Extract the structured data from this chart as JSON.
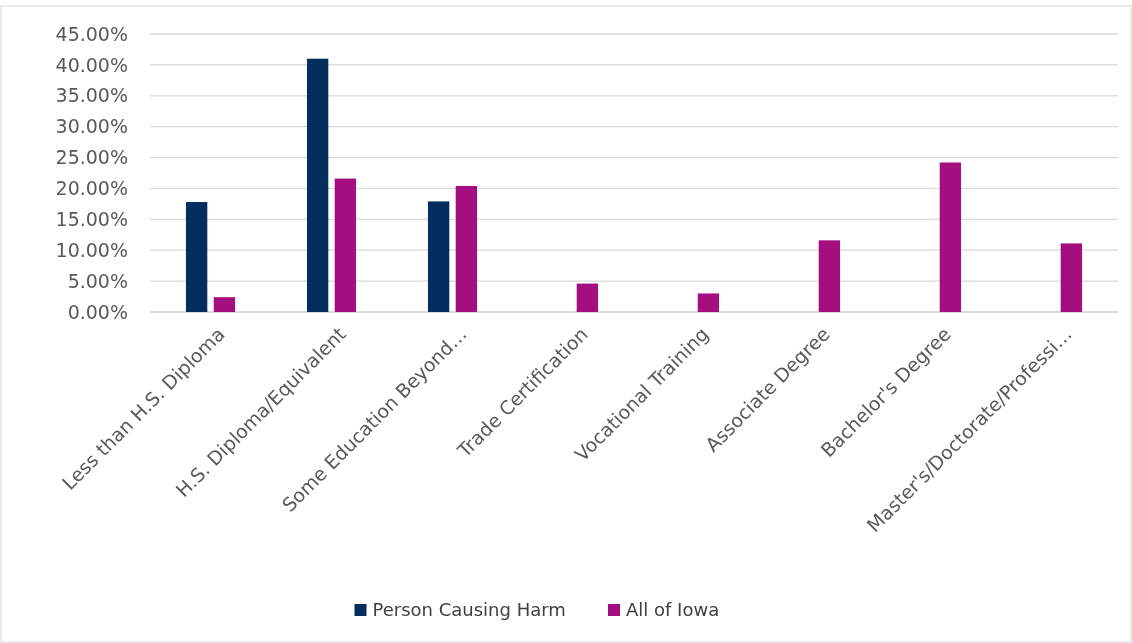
{
  "chart_data": {
    "type": "bar",
    "categories": [
      "Less than H.S. Diploma",
      "H.S. Diploma/Equivalent",
      "Some Education Beyond…",
      "Trade Certification",
      "Vocational Training",
      "Associate Degree",
      "Bachelor's Degree",
      "Master's/Doctorate/Professi…"
    ],
    "series": [
      {
        "name": "Person Causing Harm",
        "color": "#052d5e",
        "values": [
          17.8,
          41.0,
          17.9,
          null,
          null,
          null,
          null,
          null
        ]
      },
      {
        "name": "All of Iowa",
        "color": "#a50e7f",
        "values": [
          2.4,
          21.6,
          20.4,
          4.6,
          3.0,
          11.6,
          24.2,
          11.1
        ]
      }
    ],
    "ylim": [
      0,
      45
    ],
    "yticks": [
      {
        "value": 0,
        "label": "0.00%"
      },
      {
        "value": 5,
        "label": "5.00%"
      },
      {
        "value": 10,
        "label": "10.00%"
      },
      {
        "value": 15,
        "label": "15.00%"
      },
      {
        "value": 20,
        "label": "20.00%"
      },
      {
        "value": 25,
        "label": "25.00%"
      },
      {
        "value": 30,
        "label": "30.00%"
      },
      {
        "value": 35,
        "label": "35.00%"
      },
      {
        "value": 40,
        "label": "40.00%"
      },
      {
        "value": 45,
        "label": "45.00%"
      }
    ],
    "grid": "y",
    "legend": "bottom"
  }
}
